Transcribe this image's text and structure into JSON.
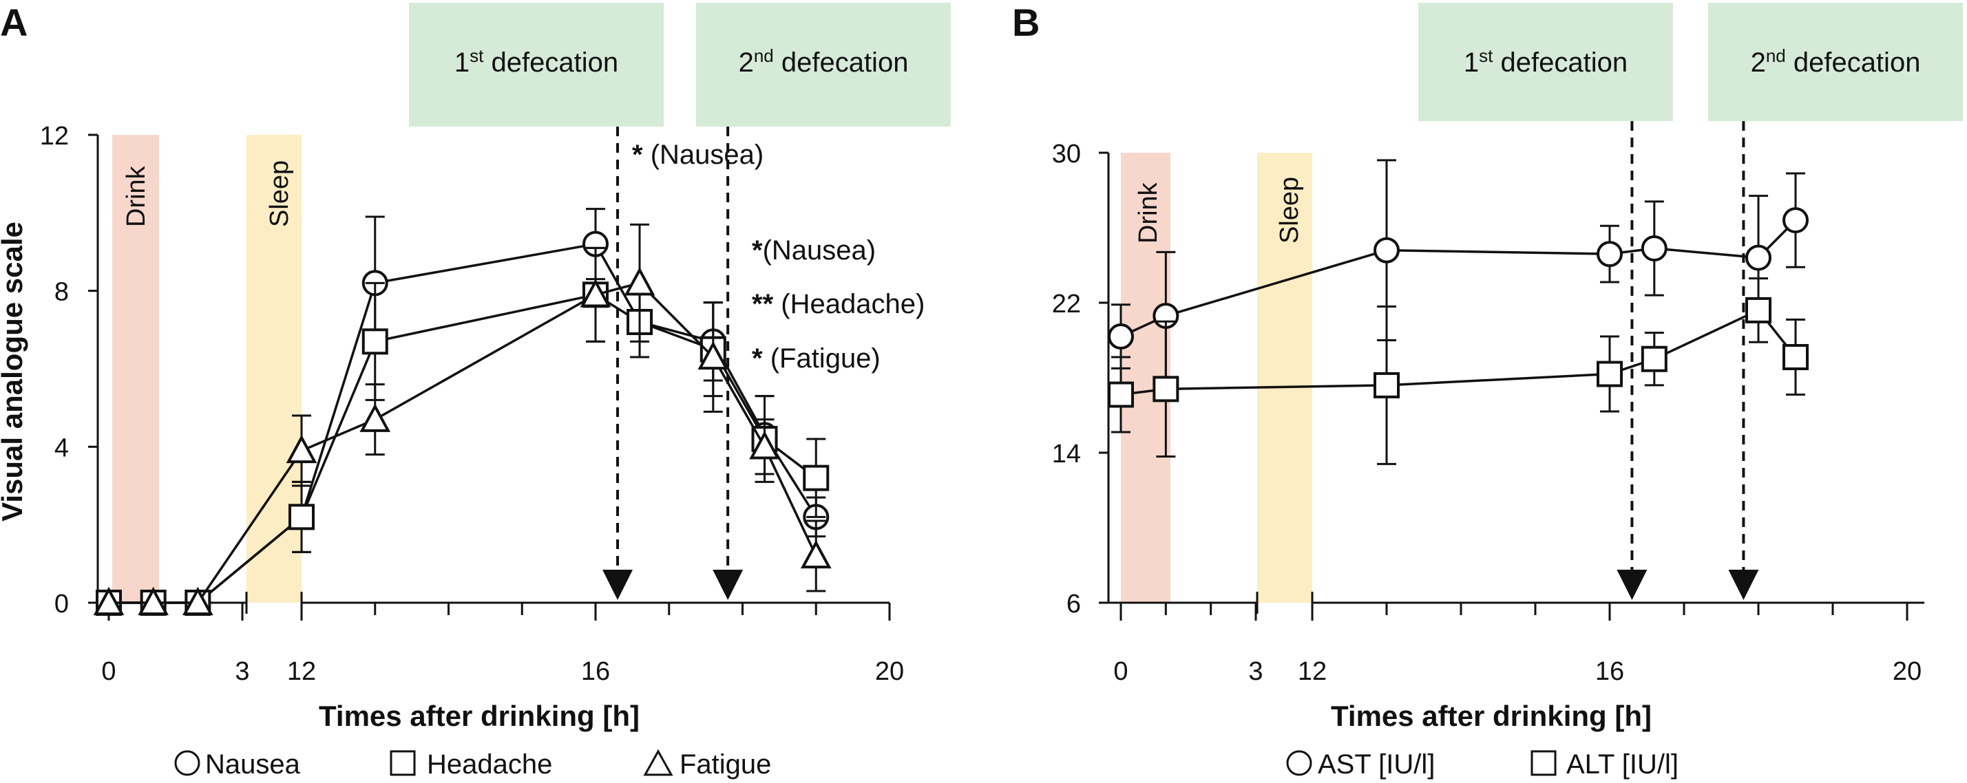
{
  "panels": [
    {
      "letter": "A",
      "ylabel": "Visual analogue scale",
      "xlabel": "Times after drinking [h]",
      "defecation_boxes": [
        {
          "num": "1",
          "sup": "st",
          "word": " defecation"
        },
        {
          "num": "2",
          "sup": "nd",
          "word": " defecation"
        }
      ],
      "bands": [
        {
          "label": "Drink",
          "color": "#f7d7cc"
        },
        {
          "label": "Sleep",
          "color": "#fdedc4"
        }
      ],
      "annotations": [
        {
          "stars": "*",
          "text": " (Nausea)"
        },
        {
          "stars": "*",
          "text": "(Nausea)"
        },
        {
          "stars": "**",
          "text": " (Headache)"
        },
        {
          "stars": "*",
          "text": " (Fatigue)"
        }
      ],
      "legend": [
        {
          "marker": "circle",
          "label": "Nausea"
        },
        {
          "marker": "square",
          "label": "Headache"
        },
        {
          "marker": "triangle",
          "label": "Fatigue"
        }
      ]
    },
    {
      "letter": "B",
      "ylabel": "",
      "xlabel": "Times after drinking [h]",
      "defecation_boxes": [
        {
          "num": "1",
          "sup": "st",
          "word": " defecation"
        },
        {
          "num": "2",
          "sup": "nd",
          "word": " defecation"
        }
      ],
      "bands": [
        {
          "label": "Drink",
          "color": "#f7d7cc"
        },
        {
          "label": "Sleep",
          "color": "#fdedc4"
        }
      ],
      "legend": [
        {
          "marker": "circle",
          "label": "AST [IU/l]"
        },
        {
          "marker": "square",
          "label": "ALT [IU/l]"
        }
      ]
    }
  ],
  "colors": {
    "defecation_box": "#d6ead8",
    "drink_band": "#f7d7cc",
    "sleep_band": "#fdedc4",
    "ink": "#111111"
  },
  "chart_data": [
    {
      "type": "line",
      "title": "A",
      "xlabel": "Times after drinking [h]",
      "ylabel": "Visual analogue scale",
      "x_axis_break": "between 3 and 12 h",
      "xticks": [
        0,
        3,
        12,
        16,
        20
      ],
      "yticks": [
        0,
        4,
        8,
        12
      ],
      "ylim": [
        0,
        12
      ],
      "events": {
        "first_defecation_h": 16.3,
        "second_defecation_h": 17.8
      },
      "series": [
        {
          "name": "Nausea",
          "marker": "circle",
          "x": [
            0,
            1,
            2,
            12,
            13,
            16,
            16.6,
            17.6,
            18.3,
            19
          ],
          "y": [
            0,
            0,
            0,
            2.2,
            8.2,
            9.2,
            7.2,
            6.7,
            4.3,
            2.2
          ],
          "err": [
            0,
            0,
            0,
            0.9,
            1.7,
            0.9,
            0.9,
            1.0,
            1.0,
            0.5
          ]
        },
        {
          "name": "Headache",
          "marker": "square",
          "x": [
            0,
            1,
            2,
            12,
            13,
            16,
            16.6,
            17.6,
            18.3,
            19
          ],
          "y": [
            0,
            0,
            0,
            2.2,
            6.7,
            7.9,
            7.2,
            6.5,
            4.2,
            3.2
          ],
          "err": [
            0,
            0,
            0,
            0.9,
            1.5,
            1.2,
            0.9,
            1.2,
            1.1,
            1.0
          ]
        },
        {
          "name": "Fatigue",
          "marker": "triangle",
          "x": [
            0,
            1,
            2,
            12,
            13,
            16,
            16.6,
            17.6,
            18.3,
            19
          ],
          "y": [
            0,
            0,
            0,
            3.9,
            4.7,
            7.9,
            8.2,
            6.3,
            4.0,
            1.2
          ],
          "err": [
            0,
            0,
            0,
            0.9,
            0.9,
            1.2,
            1.5,
            1.4,
            0.7,
            0.9
          ]
        }
      ]
    },
    {
      "type": "line",
      "title": "B",
      "xlabel": "Times after drinking [h]",
      "ylabel": "",
      "x_axis_break": "between 3 and 12 h",
      "xticks": [
        0,
        3,
        12,
        16,
        20
      ],
      "yticks": [
        6,
        14,
        22,
        30
      ],
      "ylim": [
        6,
        30
      ],
      "events": {
        "first_defecation_h": 16.3,
        "second_defecation_h": 17.8
      },
      "series": [
        {
          "name": "AST [IU/l]",
          "marker": "circle",
          "x": [
            0,
            1,
            13,
            16,
            16.6,
            18,
            18.5
          ],
          "y": [
            20.2,
            21.3,
            24.8,
            24.6,
            24.9,
            24.4,
            26.4
          ],
          "err": [
            1.7,
            3.4,
            4.8,
            1.5,
            2.5,
            3.3,
            2.5
          ]
        },
        {
          "name": "ALT [IU/l]",
          "marker": "square",
          "x": [
            0,
            1,
            13,
            16,
            16.6,
            18,
            18.5
          ],
          "y": [
            17.1,
            17.4,
            17.6,
            18.2,
            19.0,
            21.6,
            19.1
          ],
          "err": [
            2.0,
            3.6,
            4.2,
            2.0,
            1.4,
            1.7,
            2.0
          ]
        }
      ]
    }
  ]
}
